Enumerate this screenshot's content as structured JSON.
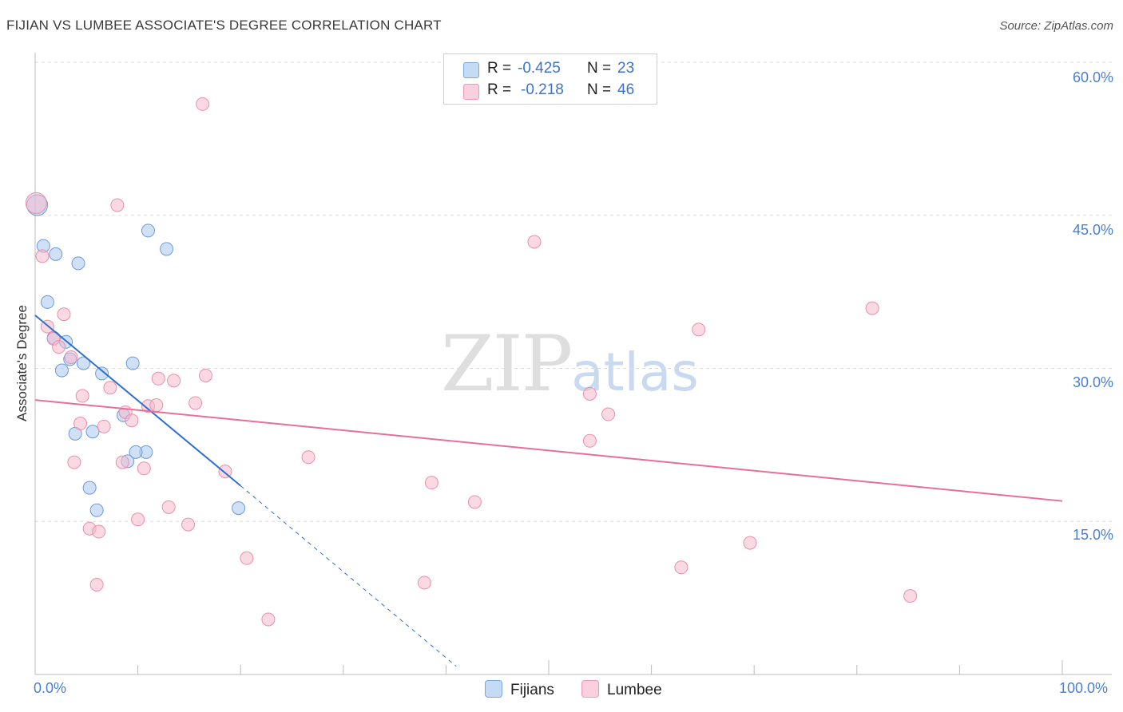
{
  "title": "FIJIAN VS LUMBEE ASSOCIATE'S DEGREE CORRELATION CHART",
  "source": "Source: ZipAtlas.com",
  "watermark": {
    "zip": "ZIP",
    "atlas": "atlas"
  },
  "colors": {
    "fijians": "#a9c8f0",
    "fijians_stroke": "#6d9ad9",
    "fijians_line": "#2d6fd0",
    "lumbee": "#f6b9cc",
    "lumbee_stroke": "#e790ad",
    "lumbee_line": "#e86f98",
    "tick_text": "#4a7fd0",
    "grid": "#dddddd"
  },
  "legend": {
    "fijians": {
      "r_label": "R =",
      "r_value": "-0.425",
      "n_label": "N =",
      "n_value": "23",
      "name": "Fijians"
    },
    "lumbee": {
      "r_label": "R =",
      "r_value": "-0.218",
      "n_label": "N =",
      "n_value": "46",
      "name": "Lumbee"
    }
  },
  "chart_data": {
    "type": "scatter",
    "title": "FIJIAN VS LUMBEE ASSOCIATE'S DEGREE CORRELATION CHART",
    "xlabel": "",
    "ylabel": "Associate's Degree",
    "xlim": [
      0,
      100
    ],
    "ylim": [
      0,
      65
    ],
    "x_tick_labels": [
      "0.0%",
      "100.0%"
    ],
    "y_ticks": [
      15,
      30,
      45,
      60
    ],
    "y_tick_labels": [
      "15.0%",
      "30.0%",
      "45.0%",
      "60.0%"
    ],
    "grid": true,
    "series": [
      {
        "name": "Fijians",
        "points": [
          [
            0.2,
            46.0
          ],
          [
            0.8,
            42.0
          ],
          [
            2.0,
            41.2
          ],
          [
            4.2,
            40.3
          ],
          [
            1.2,
            36.5
          ],
          [
            1.8,
            33.0
          ],
          [
            3.0,
            32.6
          ],
          [
            3.4,
            30.9
          ],
          [
            4.7,
            30.5
          ],
          [
            2.6,
            29.8
          ],
          [
            6.5,
            29.5
          ],
          [
            9.5,
            30.5
          ],
          [
            11.0,
            43.5
          ],
          [
            12.8,
            41.7
          ],
          [
            8.6,
            25.4
          ],
          [
            3.9,
            23.6
          ],
          [
            5.6,
            23.8
          ],
          [
            10.8,
            21.8
          ],
          [
            9.0,
            20.9
          ],
          [
            9.8,
            21.8
          ],
          [
            5.3,
            18.3
          ],
          [
            6.0,
            16.1
          ],
          [
            19.8,
            16.3
          ]
        ],
        "trend": {
          "x0": 0,
          "y0": 35.2,
          "x1": 20.0,
          "y1": 18.5,
          "dash_to_x": 41.0,
          "dash_to_y": 0.8
        }
      },
      {
        "name": "Lumbee",
        "points": [
          [
            16.3,
            55.9
          ],
          [
            0.1,
            46.2
          ],
          [
            8.0,
            46.0
          ],
          [
            0.7,
            41.0
          ],
          [
            48.6,
            42.4
          ],
          [
            2.8,
            35.3
          ],
          [
            81.5,
            35.9
          ],
          [
            1.2,
            34.1
          ],
          [
            1.8,
            32.9
          ],
          [
            2.3,
            32.1
          ],
          [
            3.5,
            31.1
          ],
          [
            64.6,
            33.8
          ],
          [
            12.0,
            29.0
          ],
          [
            13.5,
            28.8
          ],
          [
            16.6,
            29.3
          ],
          [
            7.3,
            28.1
          ],
          [
            54.0,
            27.5
          ],
          [
            4.6,
            27.3
          ],
          [
            15.6,
            26.6
          ],
          [
            11.0,
            26.3
          ],
          [
            11.8,
            26.4
          ],
          [
            8.8,
            25.7
          ],
          [
            55.8,
            25.5
          ],
          [
            4.4,
            24.6
          ],
          [
            6.7,
            24.3
          ],
          [
            9.4,
            24.9
          ],
          [
            54.0,
            22.9
          ],
          [
            26.6,
            21.3
          ],
          [
            3.8,
            20.8
          ],
          [
            8.5,
            20.8
          ],
          [
            10.6,
            20.2
          ],
          [
            18.5,
            19.9
          ],
          [
            38.6,
            18.8
          ],
          [
            42.8,
            16.9
          ],
          [
            13.0,
            16.4
          ],
          [
            14.9,
            14.7
          ],
          [
            10.0,
            15.2
          ],
          [
            5.3,
            14.3
          ],
          [
            6.2,
            14.0
          ],
          [
            69.6,
            12.9
          ],
          [
            20.6,
            11.4
          ],
          [
            62.9,
            10.5
          ],
          [
            37.9,
            9.0
          ],
          [
            6.0,
            8.8
          ],
          [
            85.2,
            7.7
          ],
          [
            22.7,
            5.4
          ]
        ],
        "trend": {
          "x0": 0,
          "y0": 26.9,
          "x1": 100,
          "y1": 17.0
        }
      }
    ]
  }
}
